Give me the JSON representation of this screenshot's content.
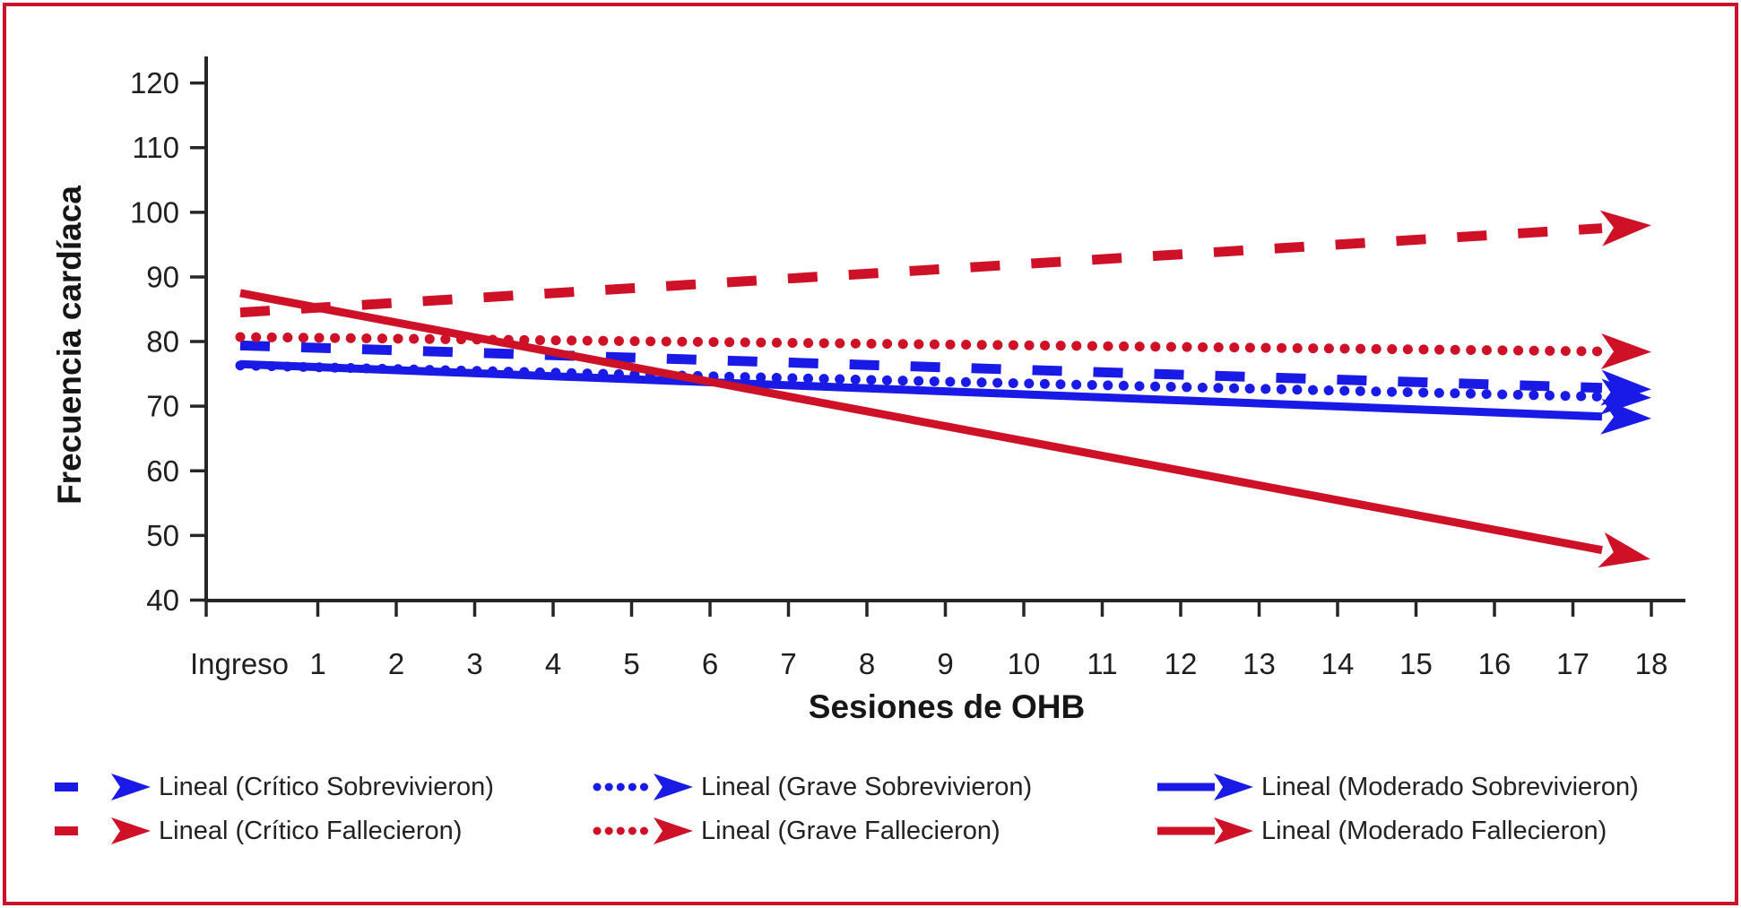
{
  "frame": {
    "border_color": "#CF1127",
    "background": "#FFFFFF"
  },
  "chart_data": {
    "type": "line",
    "subtype": "linear-trendlines-with-arrow-ends",
    "title": "",
    "xlabel": "Sesiones de OHB",
    "ylabel": "Frecuencia cardíaca",
    "x_categories": [
      "Ingreso",
      "1",
      "2",
      "3",
      "4",
      "5",
      "6",
      "7",
      "8",
      "9",
      "10",
      "11",
      "12",
      "13",
      "14",
      "15",
      "16",
      "17",
      "18"
    ],
    "y_ticks": [
      40,
      50,
      60,
      70,
      80,
      90,
      100,
      110,
      120
    ],
    "ylim": [
      40,
      120
    ],
    "grid": false,
    "colors": {
      "blue": "#1A1AE6",
      "red": "#CF1127",
      "axis": "#262626",
      "text": "#1F1F1F"
    },
    "series": [
      {
        "name": "Lineal (Crítico Sobrevivieron)",
        "color": "#1A1AE6",
        "style": "dashed",
        "y_at_ingreso": 79.4,
        "y_at_session_18": 72.6
      },
      {
        "name": "Lineal (Grave Sobrevivieron)",
        "color": "#1A1AE6",
        "style": "dotted",
        "y_at_ingreso": 76.3,
        "y_at_session_18": 71.3
      },
      {
        "name": "Lineal (Moderado Sobrevivieron)",
        "color": "#1A1AE6",
        "style": "solid",
        "y_at_ingreso": 76.5,
        "y_at_session_18": 68.1
      },
      {
        "name": "Lineal (Crítico Fallecieron)",
        "color": "#CF1127",
        "style": "dashed",
        "y_at_ingreso": 84.5,
        "y_at_session_18": 98.0
      },
      {
        "name": "Lineal (Grave Fallecieron)",
        "color": "#CF1127",
        "style": "dotted",
        "y_at_ingreso": 80.7,
        "y_at_session_18": 78.4
      },
      {
        "name": "Lineal (Moderado Fallecieron)",
        "color": "#CF1127",
        "style": "solid",
        "y_at_ingreso": 87.5,
        "y_at_session_18": 46.3
      }
    ],
    "legend": {
      "position": "bottom",
      "order": [
        0,
        1,
        2,
        3,
        4,
        5
      ]
    }
  }
}
